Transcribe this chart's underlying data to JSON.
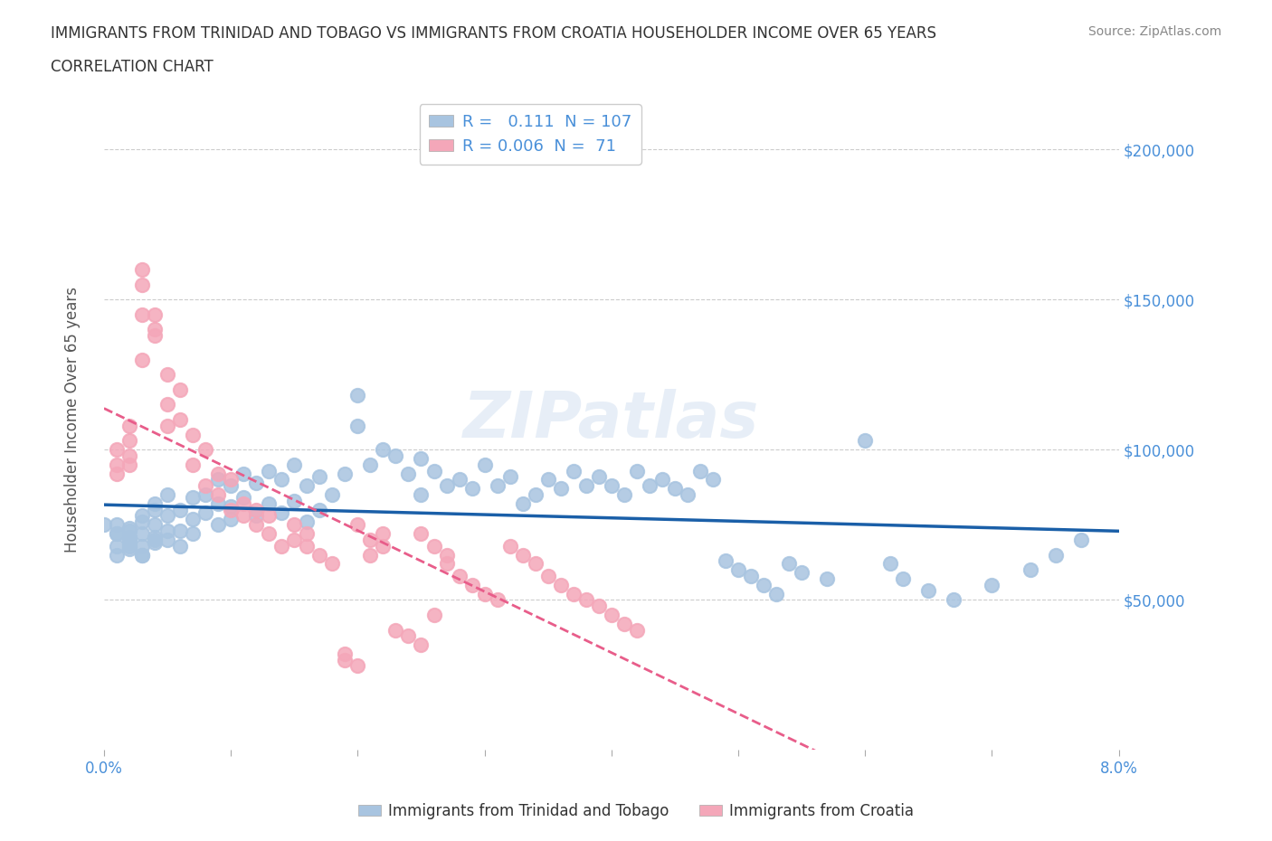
{
  "title_line1": "IMMIGRANTS FROM TRINIDAD AND TOBAGO VS IMMIGRANTS FROM CROATIA HOUSEHOLDER INCOME OVER 65 YEARS",
  "title_line2": "CORRELATION CHART",
  "source_text": "Source: ZipAtlas.com",
  "xlabel": "",
  "ylabel": "Householder Income Over 65 years",
  "xlim": [
    0.0,
    0.08
  ],
  "ylim": [
    0,
    220000
  ],
  "xticks": [
    0.0,
    0.01,
    0.02,
    0.03,
    0.04,
    0.05,
    0.06,
    0.07,
    0.08
  ],
  "xticklabels": [
    "0.0%",
    "",
    "",
    "",
    "",
    "",
    "",
    "",
    "8.0%"
  ],
  "ytick_positions": [
    0,
    50000,
    100000,
    150000,
    200000
  ],
  "ytick_labels": [
    "",
    "$50,000",
    "$100,000",
    "$150,000",
    "$200,000"
  ],
  "color_tt": "#a8c4e0",
  "color_cr": "#f4a7b9",
  "line_color_tt": "#1a5fa8",
  "line_color_cr": "#e85d8a",
  "R_tt": 0.111,
  "N_tt": 107,
  "R_cr": 0.006,
  "N_cr": 71,
  "legend_label_tt": "Immigrants from Trinidad and Tobago",
  "legend_label_cr": "Immigrants from Croatia",
  "watermark": "ZIPatlas",
  "scatter_tt_x": [
    0.001,
    0.001,
    0.001,
    0.001,
    0.002,
    0.002,
    0.002,
    0.002,
    0.002,
    0.002,
    0.003,
    0.003,
    0.003,
    0.003,
    0.003,
    0.004,
    0.004,
    0.004,
    0.004,
    0.004,
    0.005,
    0.005,
    0.005,
    0.005,
    0.006,
    0.006,
    0.006,
    0.007,
    0.007,
    0.007,
    0.008,
    0.008,
    0.009,
    0.009,
    0.009,
    0.01,
    0.01,
    0.01,
    0.011,
    0.011,
    0.012,
    0.012,
    0.013,
    0.013,
    0.014,
    0.014,
    0.015,
    0.015,
    0.016,
    0.016,
    0.017,
    0.017,
    0.018,
    0.019,
    0.02,
    0.02,
    0.021,
    0.022,
    0.023,
    0.024,
    0.025,
    0.025,
    0.026,
    0.027,
    0.028,
    0.029,
    0.03,
    0.031,
    0.032,
    0.033,
    0.034,
    0.035,
    0.036,
    0.037,
    0.038,
    0.039,
    0.04,
    0.041,
    0.042,
    0.043,
    0.044,
    0.045,
    0.046,
    0.047,
    0.048,
    0.049,
    0.05,
    0.051,
    0.052,
    0.053,
    0.054,
    0.055,
    0.057,
    0.06,
    0.062,
    0.063,
    0.065,
    0.067,
    0.07,
    0.073,
    0.075,
    0.077,
    0.0,
    0.001,
    0.002,
    0.003,
    0.004
  ],
  "scatter_tt_y": [
    65000,
    72000,
    68000,
    75000,
    70000,
    73000,
    67000,
    71000,
    69000,
    74000,
    76000,
    68000,
    72000,
    65000,
    78000,
    80000,
    71000,
    75000,
    69000,
    82000,
    73000,
    78000,
    70000,
    85000,
    80000,
    73000,
    68000,
    84000,
    77000,
    72000,
    85000,
    79000,
    90000,
    82000,
    75000,
    88000,
    81000,
    77000,
    92000,
    84000,
    89000,
    78000,
    93000,
    82000,
    90000,
    79000,
    95000,
    83000,
    88000,
    76000,
    91000,
    80000,
    85000,
    92000,
    118000,
    108000,
    95000,
    100000,
    98000,
    92000,
    97000,
    85000,
    93000,
    88000,
    90000,
    87000,
    95000,
    88000,
    91000,
    82000,
    85000,
    90000,
    87000,
    93000,
    88000,
    91000,
    88000,
    85000,
    93000,
    88000,
    90000,
    87000,
    85000,
    93000,
    90000,
    63000,
    60000,
    58000,
    55000,
    52000,
    62000,
    59000,
    57000,
    103000,
    62000,
    57000,
    53000,
    50000,
    55000,
    60000,
    65000,
    70000,
    75000,
    72000,
    68000,
    65000,
    70000
  ],
  "scatter_cr_x": [
    0.001,
    0.001,
    0.001,
    0.002,
    0.002,
    0.002,
    0.002,
    0.003,
    0.003,
    0.003,
    0.003,
    0.004,
    0.004,
    0.004,
    0.005,
    0.005,
    0.005,
    0.006,
    0.006,
    0.007,
    0.007,
    0.008,
    0.008,
    0.009,
    0.009,
    0.01,
    0.01,
    0.011,
    0.011,
    0.012,
    0.012,
    0.013,
    0.013,
    0.014,
    0.015,
    0.015,
    0.016,
    0.016,
    0.017,
    0.018,
    0.019,
    0.019,
    0.02,
    0.02,
    0.021,
    0.021,
    0.022,
    0.022,
    0.023,
    0.024,
    0.025,
    0.025,
    0.026,
    0.026,
    0.027,
    0.027,
    0.028,
    0.029,
    0.03,
    0.031,
    0.032,
    0.033,
    0.034,
    0.035,
    0.036,
    0.037,
    0.038,
    0.039,
    0.04,
    0.041,
    0.042
  ],
  "scatter_cr_y": [
    100000,
    95000,
    92000,
    108000,
    103000,
    98000,
    95000,
    130000,
    145000,
    160000,
    155000,
    140000,
    145000,
    138000,
    125000,
    115000,
    108000,
    120000,
    110000,
    105000,
    95000,
    100000,
    88000,
    92000,
    85000,
    80000,
    90000,
    78000,
    82000,
    75000,
    80000,
    72000,
    78000,
    68000,
    75000,
    70000,
    72000,
    68000,
    65000,
    62000,
    30000,
    32000,
    28000,
    75000,
    65000,
    70000,
    68000,
    72000,
    40000,
    38000,
    35000,
    72000,
    45000,
    68000,
    65000,
    62000,
    58000,
    55000,
    52000,
    50000,
    68000,
    65000,
    62000,
    58000,
    55000,
    52000,
    50000,
    48000,
    45000,
    42000,
    40000
  ]
}
